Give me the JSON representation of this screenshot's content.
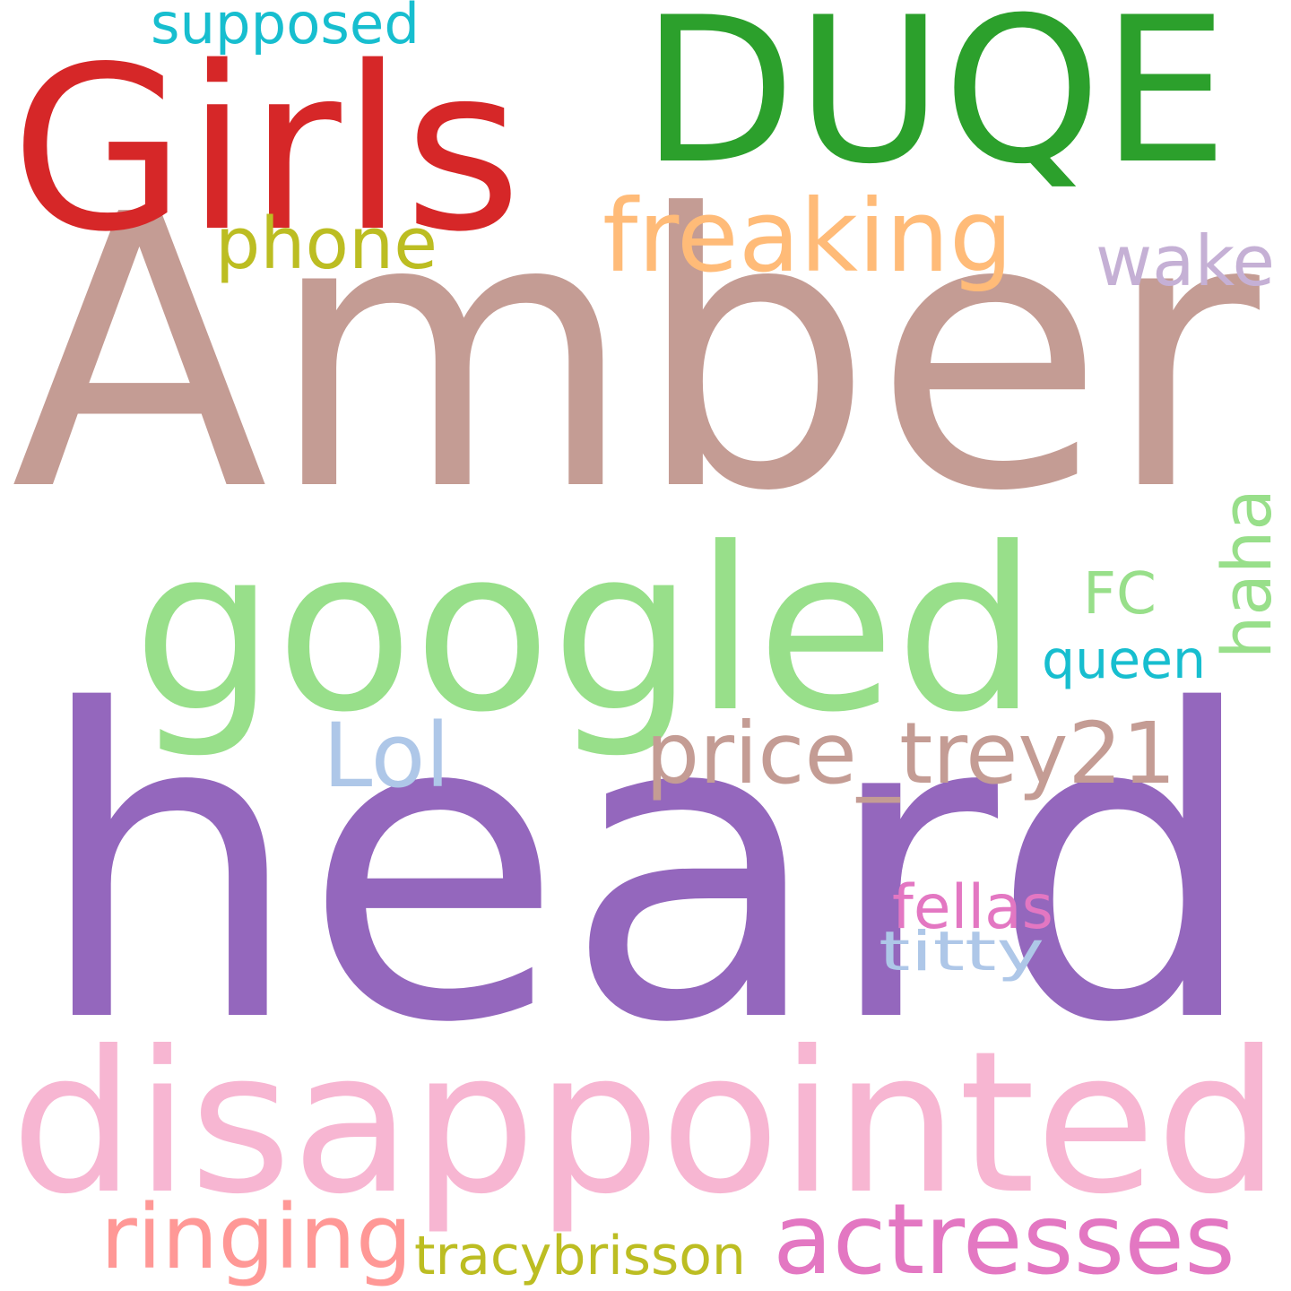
{
  "word_cloud": {
    "words": [
      {
        "text": "Amber",
        "color": "#c49c94"
      },
      {
        "text": "heard",
        "color": "#9467bd"
      },
      {
        "text": "DUQE",
        "color": "#2ca02c"
      },
      {
        "text": "Girls",
        "color": "#d62728"
      },
      {
        "text": "googled",
        "color": "#98df8a"
      },
      {
        "text": "disappointed",
        "color": "#f7b6d2"
      },
      {
        "text": "freaking",
        "color": "#ffbb78"
      },
      {
        "text": "phone",
        "color": "#bcbd22"
      },
      {
        "text": "supposed",
        "color": "#17becf"
      },
      {
        "text": "wake",
        "color": "#c5b0d5"
      },
      {
        "text": "FC",
        "color": "#98df8a"
      },
      {
        "text": "haha",
        "color": "#98df8a"
      },
      {
        "text": "queen",
        "color": "#17becf"
      },
      {
        "text": "Lol",
        "color": "#aec7e8"
      },
      {
        "text": "price_trey21",
        "color": "#c49c94"
      },
      {
        "text": "fellas",
        "color": "#e377c2"
      },
      {
        "text": "titty",
        "color": "#aec7e8"
      },
      {
        "text": "ringing",
        "color": "#ff9896"
      },
      {
        "text": "actresses",
        "color": "#e377c2"
      },
      {
        "text": "tracybrisson",
        "color": "#bcbd22"
      }
    ]
  }
}
